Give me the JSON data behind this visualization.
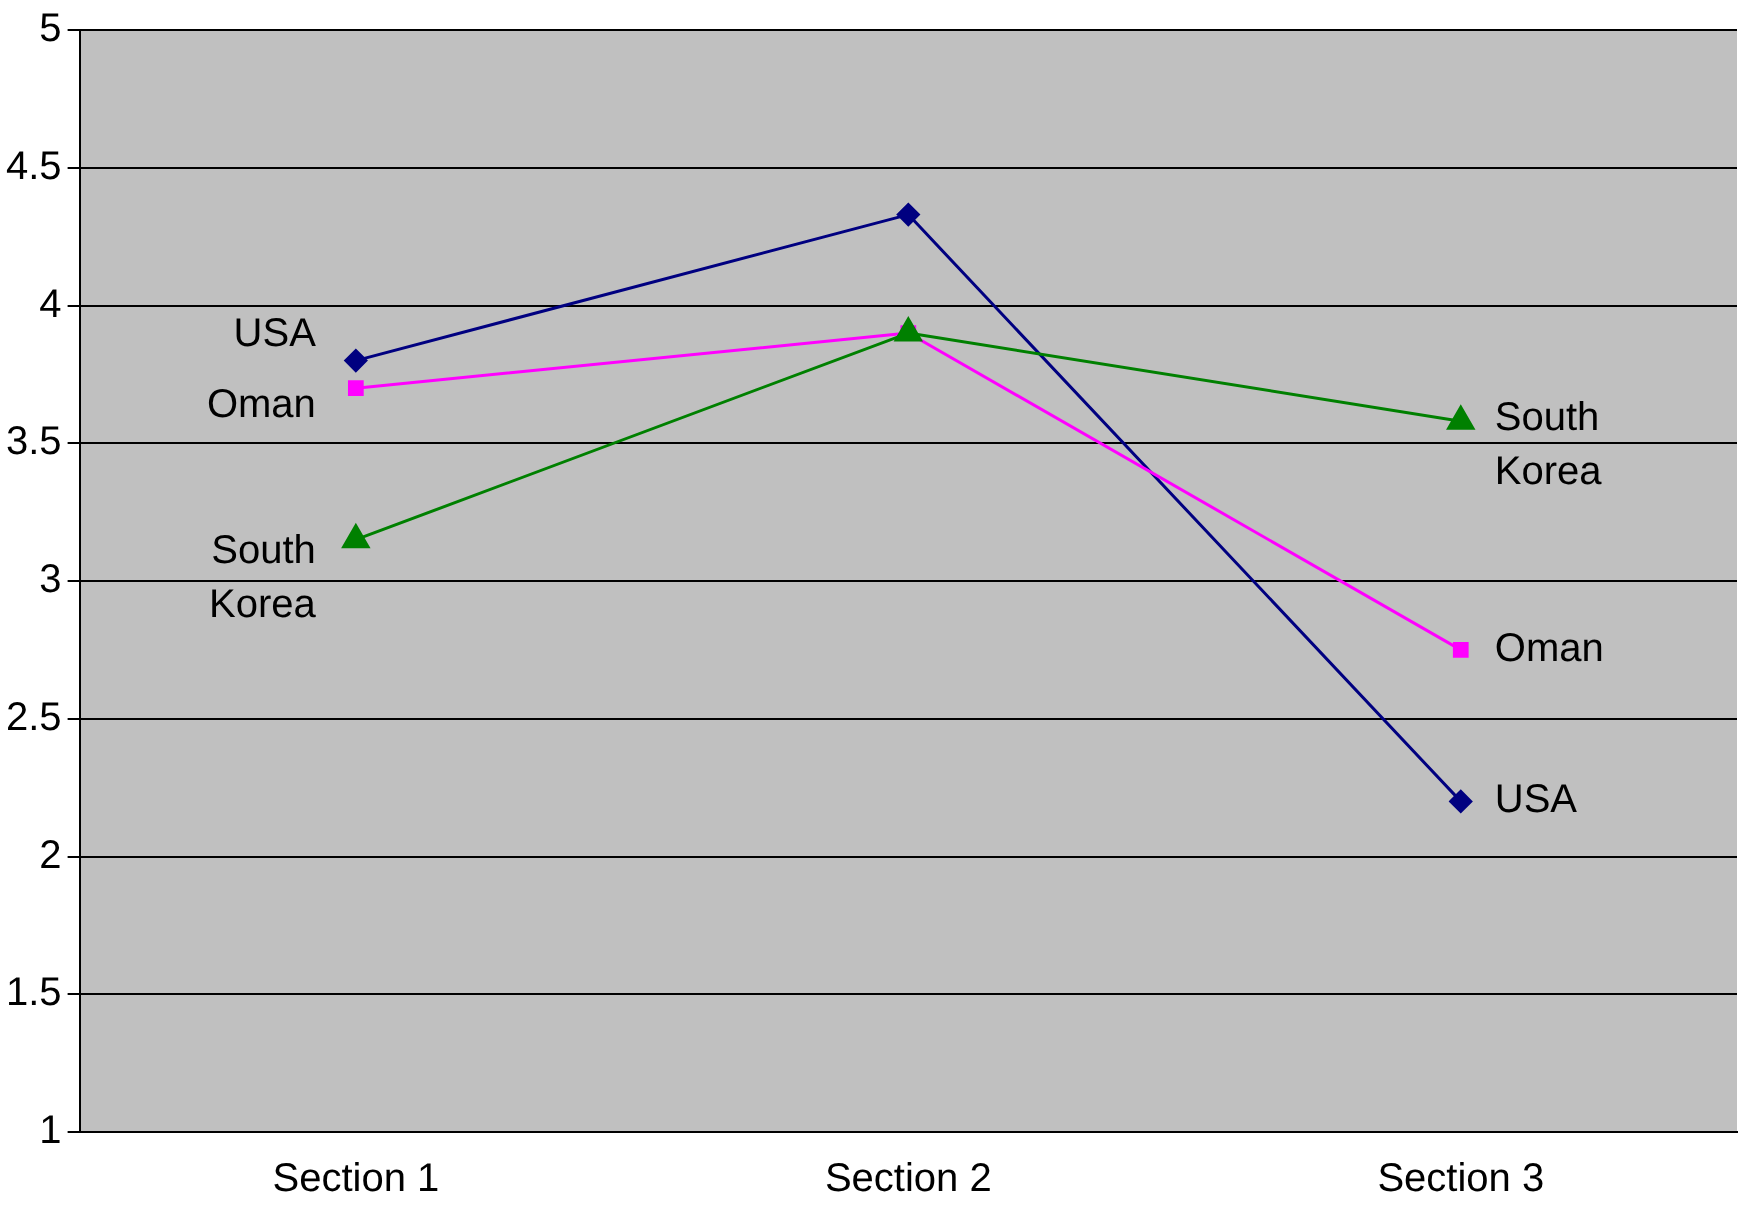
{
  "chart_data": {
    "type": "line",
    "categories": [
      "Section 1",
      "Section 2",
      "Section 3"
    ],
    "series": [
      {
        "name": "USA",
        "color": "#000080",
        "marker": "diamond",
        "values": [
          3.8,
          4.33,
          2.2
        ]
      },
      {
        "name": "Oman",
        "color": "#ff00ff",
        "marker": "square",
        "values": [
          3.7,
          3.9,
          2.75
        ]
      },
      {
        "name": "South Korea",
        "color": "#008000",
        "marker": "triangle",
        "values": [
          3.15,
          3.9,
          3.58
        ]
      }
    ],
    "ylim": [
      1,
      5
    ],
    "yticks": [
      1,
      1.5,
      2,
      2.5,
      3,
      3.5,
      4,
      4.5,
      5
    ],
    "grid": "y",
    "legend": false
  }
}
